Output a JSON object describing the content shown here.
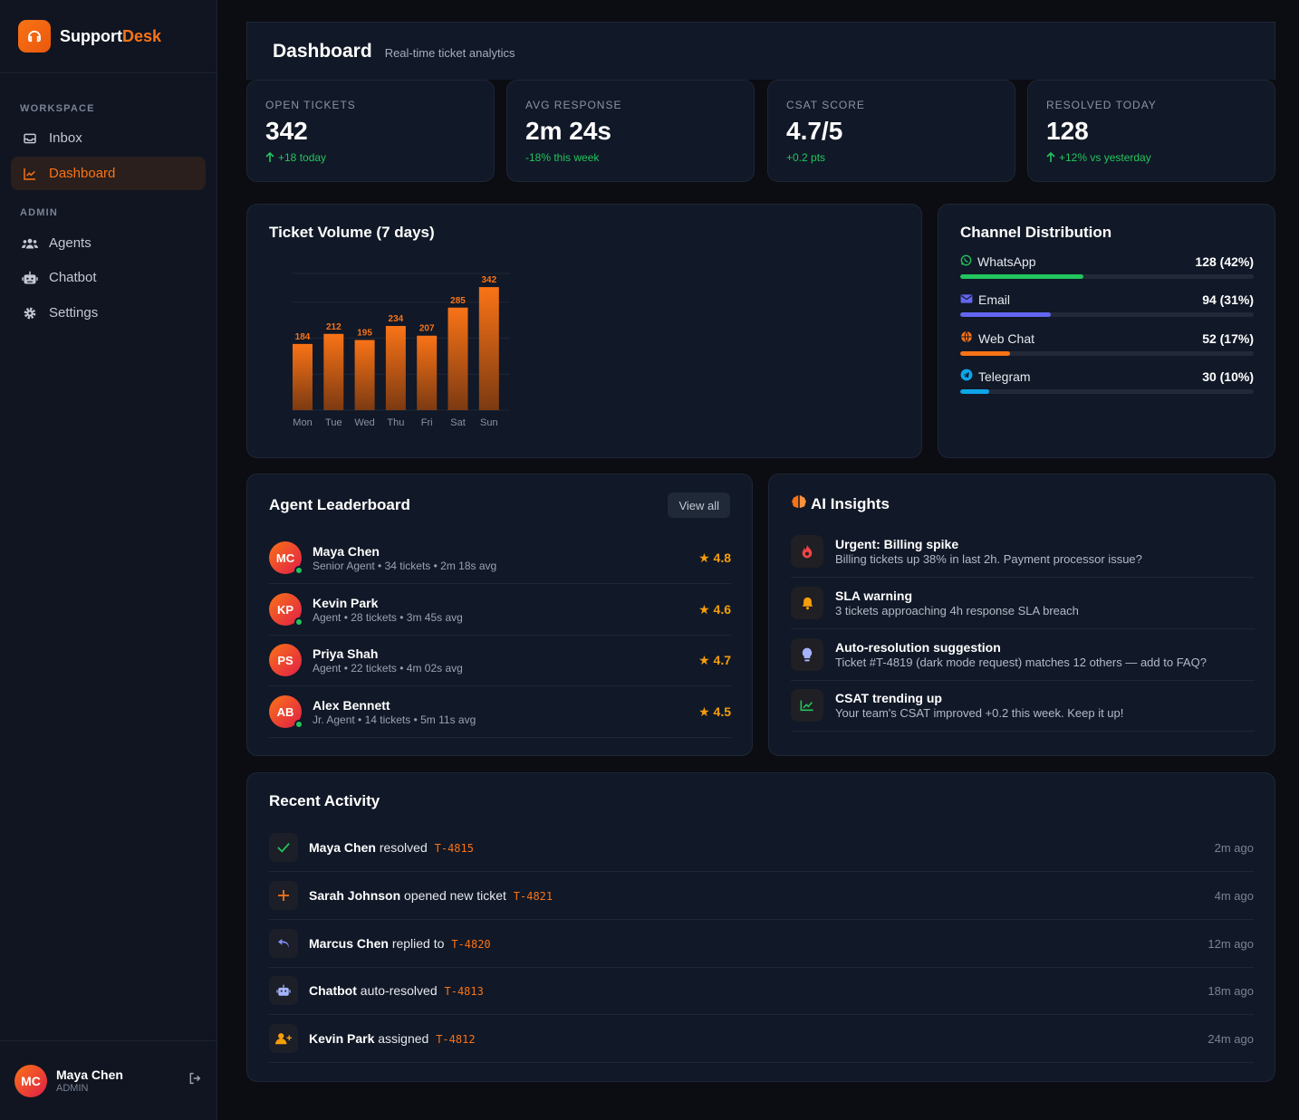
{
  "brand": {
    "name_part1": "Support",
    "name_part2": "Desk"
  },
  "sidebar": {
    "sections": [
      {
        "label": "WORKSPACE"
      },
      {
        "label": "ADMIN"
      }
    ],
    "items": [
      {
        "label": "Inbox",
        "icon": "inbox-icon"
      },
      {
        "label": "Dashboard",
        "icon": "chart-line-icon",
        "active": true
      },
      {
        "label": "Agents",
        "icon": "users-icon"
      },
      {
        "label": "Chatbot",
        "icon": "robot-icon"
      },
      {
        "label": "Settings",
        "icon": "gear-icon"
      }
    ],
    "user": {
      "initials": "MC",
      "name": "Maya Chen",
      "role": "ADMIN"
    }
  },
  "header": {
    "title": "Dashboard",
    "subtitle": "Real-time ticket analytics"
  },
  "stats": [
    {
      "label": "OPEN TICKETS",
      "value": "342",
      "delta": "+18 today",
      "delta_color": "#22c55e",
      "arrow": true
    },
    {
      "label": "AVG RESPONSE",
      "value": "2m 24s",
      "delta": "-18% this week",
      "delta_color": "#22c55e",
      "arrow": false
    },
    {
      "label": "CSAT SCORE",
      "value": "4.7/5",
      "delta": "+0.2 pts",
      "delta_color": "#22c55e",
      "arrow": false
    },
    {
      "label": "RESOLVED TODAY",
      "value": "128",
      "delta": "+12% vs yesterday",
      "delta_color": "#22c55e",
      "arrow": true
    }
  ],
  "volume_card": {
    "title": "Ticket Volume (7 days)"
  },
  "chart_data": {
    "type": "bar",
    "title": "Ticket Volume (7 days)",
    "categories": [
      "Mon",
      "Tue",
      "Wed",
      "Thu",
      "Fri",
      "Sat",
      "Sun"
    ],
    "values": [
      184,
      212,
      195,
      234,
      207,
      285,
      342
    ],
    "ylim": [
      0,
      380
    ],
    "grid": true,
    "color": "#f97316"
  },
  "channels": {
    "title": "Channel Distribution",
    "items": [
      {
        "name": "WhatsApp",
        "value": "128 (42%)",
        "pct": 0.42,
        "color": "#22c55e",
        "icon": "whatsapp-icon"
      },
      {
        "name": "Email",
        "value": "94 (31%)",
        "pct": 0.31,
        "color": "#6366f1",
        "icon": "envelope-icon"
      },
      {
        "name": "Web Chat",
        "value": "52 (17%)",
        "pct": 0.17,
        "color": "#f97316",
        "icon": "globe-icon"
      },
      {
        "name": "Telegram",
        "value": "30 (10%)",
        "pct": 0.1,
        "color": "#0ea5e9",
        "icon": "telegram-icon"
      }
    ]
  },
  "leaderboard": {
    "title": "Agent Leaderboard",
    "view_all": "View all",
    "agents": [
      {
        "initials": "MC",
        "name": "Maya Chen",
        "meta": "Senior Agent • 34 tickets • 2m 18s avg",
        "rating": "★ 4.8",
        "online": true
      },
      {
        "initials": "KP",
        "name": "Kevin Park",
        "meta": "Agent • 28 tickets • 3m 45s avg",
        "rating": "★ 4.6",
        "online": true
      },
      {
        "initials": "PS",
        "name": "Priya Shah",
        "meta": "Agent • 22 tickets • 4m 02s avg",
        "rating": "★ 4.7",
        "online": false
      },
      {
        "initials": "AB",
        "name": "Alex Bennett",
        "meta": "Jr. Agent • 14 tickets • 5m 11s avg",
        "rating": "★ 4.5",
        "online": true
      }
    ]
  },
  "insights": {
    "title": "AI Insights",
    "items": [
      {
        "title": "Urgent: Billing spike",
        "desc": "Billing tickets up 38% in last 2h. Payment processor issue?",
        "icon": "fire-icon",
        "color": "#ef4444"
      },
      {
        "title": "SLA warning",
        "desc": "3 tickets approaching 4h response SLA breach",
        "icon": "bell-icon",
        "color": "#f59e0b"
      },
      {
        "title": "Auto-resolution suggestion",
        "desc": "Ticket #T-4819 (dark mode request) matches 12 others — add to FAQ?",
        "icon": "lightbulb-icon",
        "color": "#a5b4fc"
      },
      {
        "title": "CSAT trending up",
        "desc": "Your team's CSAT improved +0.2 this week. Keep it up!",
        "icon": "trend-up-icon",
        "color": "#22c55e"
      }
    ]
  },
  "activity": {
    "title": "Recent Activity",
    "items": [
      {
        "actor": "Maya Chen",
        "action": "resolved",
        "ticket": "T-4815",
        "time": "2m ago",
        "icon": "check-icon",
        "color": "#22c55e"
      },
      {
        "actor": "Sarah Johnson",
        "action": "opened new ticket",
        "ticket": "T-4821",
        "time": "4m ago",
        "icon": "plus-icon",
        "color": "#f97316"
      },
      {
        "actor": "Marcus Chen",
        "action": "replied to",
        "ticket": "T-4820",
        "time": "12m ago",
        "icon": "reply-icon",
        "color": "#818cf8"
      },
      {
        "actor": "Chatbot",
        "action": "auto-resolved",
        "ticket": "T-4813",
        "time": "18m ago",
        "icon": "robot-icon",
        "color": "#a5b4fc"
      },
      {
        "actor": "Kevin Park",
        "action": "assigned",
        "ticket": "T-4812",
        "time": "24m ago",
        "icon": "user-plus-icon",
        "color": "#f59e0b"
      }
    ]
  }
}
